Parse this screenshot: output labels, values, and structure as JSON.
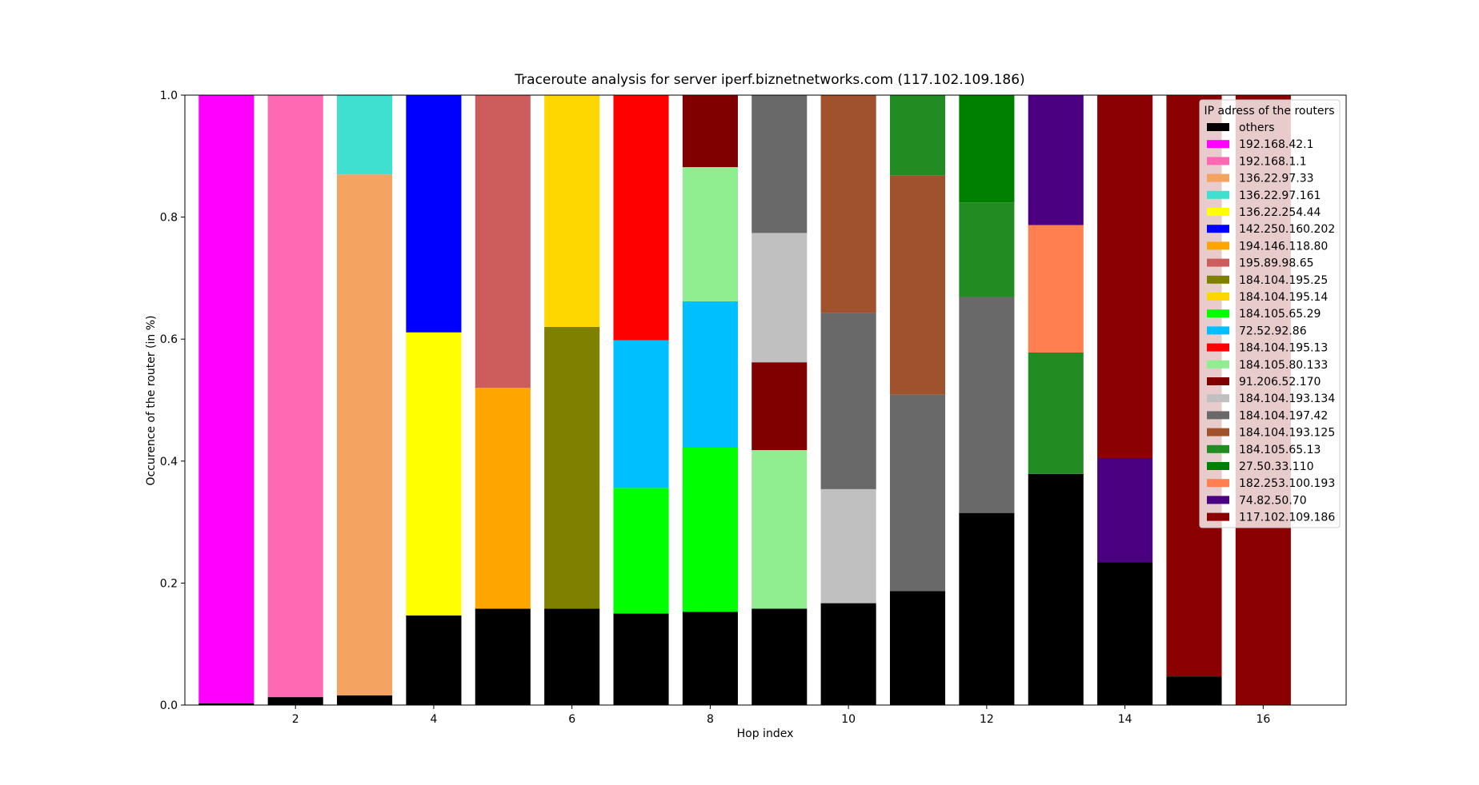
{
  "chart_data": {
    "type": "bar",
    "stacked": true,
    "title": "Traceroute analysis for server iperf.biznetnetworks.com (117.102.109.186)",
    "xlabel": "Hop index",
    "ylabel": "Occurence of the router (in %)",
    "xlim": [
      0.4,
      17.2
    ],
    "ylim": [
      0.0,
      1.0
    ],
    "xticks": [
      2,
      4,
      6,
      8,
      10,
      12,
      14,
      16
    ],
    "yticks": [
      0.0,
      0.2,
      0.4,
      0.6,
      0.8,
      1.0
    ],
    "ytick_labels": [
      "0.0",
      "0.2",
      "0.4",
      "0.6",
      "0.8",
      "1.0"
    ],
    "grid": false,
    "legend": {
      "title": "IP adress of the routers",
      "position": "upper right",
      "entries": [
        {
          "label": "others",
          "color": "#000000"
        },
        {
          "label": "192.168.42.1",
          "color": "#ff00ff"
        },
        {
          "label": "192.168.1.1",
          "color": "#ff69b4"
        },
        {
          "label": "136.22.97.33",
          "color": "#f4a460"
        },
        {
          "label": "136.22.97.161",
          "color": "#40e0d0"
        },
        {
          "label": "136.22.254.44",
          "color": "#ffff00"
        },
        {
          "label": "142.250.160.202",
          "color": "#0000ff"
        },
        {
          "label": "194.146.118.80",
          "color": "#ffa500"
        },
        {
          "label": "195.89.98.65",
          "color": "#cd5c5c"
        },
        {
          "label": "184.104.195.25",
          "color": "#808000"
        },
        {
          "label": "184.104.195.14",
          "color": "#ffd700"
        },
        {
          "label": "184.105.65.29",
          "color": "#00ff00"
        },
        {
          "label": "72.52.92.86",
          "color": "#00bfff"
        },
        {
          "label": "184.104.195.13",
          "color": "#ff0000"
        },
        {
          "label": "184.105.80.133",
          "color": "#90ee90"
        },
        {
          "label": "91.206.52.170",
          "color": "#800000"
        },
        {
          "label": "184.104.193.134",
          "color": "#c0c0c0"
        },
        {
          "label": "184.104.197.42",
          "color": "#696969"
        },
        {
          "label": "184.104.193.125",
          "color": "#a0522d"
        },
        {
          "label": "184.105.65.13",
          "color": "#228b22"
        },
        {
          "label": "27.50.33.110",
          "color": "#008000"
        },
        {
          "label": "182.253.100.193",
          "color": "#ff7f50"
        },
        {
          "label": "74.82.50.70",
          "color": "#4b0082"
        },
        {
          "label": "117.102.109.186",
          "color": "#8b0000"
        }
      ]
    },
    "bars": [
      {
        "x": 1,
        "segments": [
          {
            "router": "others",
            "value": 0.003
          },
          {
            "router": "192.168.42.1",
            "value": 0.997
          }
        ]
      },
      {
        "x": 2,
        "segments": [
          {
            "router": "others",
            "value": 0.013
          },
          {
            "router": "192.168.1.1",
            "value": 0.987
          }
        ]
      },
      {
        "x": 3,
        "segments": [
          {
            "router": "others",
            "value": 0.016
          },
          {
            "router": "136.22.97.33",
            "value": 0.854
          },
          {
            "router": "136.22.97.161",
            "value": 0.13
          }
        ]
      },
      {
        "x": 4,
        "segments": [
          {
            "router": "others",
            "value": 0.147
          },
          {
            "router": "136.22.254.44",
            "value": 0.464
          },
          {
            "router": "142.250.160.202",
            "value": 0.389
          }
        ]
      },
      {
        "x": 5,
        "segments": [
          {
            "router": "others",
            "value": 0.158
          },
          {
            "router": "194.146.118.80",
            "value": 0.362
          },
          {
            "router": "195.89.98.65",
            "value": 0.48
          }
        ]
      },
      {
        "x": 6,
        "segments": [
          {
            "router": "others",
            "value": 0.158
          },
          {
            "router": "184.104.195.25",
            "value": 0.462
          },
          {
            "router": "184.104.195.14",
            "value": 0.38
          }
        ]
      },
      {
        "x": 7,
        "segments": [
          {
            "router": "others",
            "value": 0.15
          },
          {
            "router": "184.105.65.29",
            "value": 0.206
          },
          {
            "router": "72.52.92.86",
            "value": 0.242
          },
          {
            "router": "184.104.195.13",
            "value": 0.402
          }
        ]
      },
      {
        "x": 8,
        "segments": [
          {
            "router": "others",
            "value": 0.153
          },
          {
            "router": "184.105.65.29",
            "value": 0.269
          },
          {
            "router": "72.52.92.86",
            "value": 0.24
          },
          {
            "router": "184.105.80.133",
            "value": 0.22
          },
          {
            "router": "91.206.52.170",
            "value": 0.118
          }
        ]
      },
      {
        "x": 9,
        "segments": [
          {
            "router": "others",
            "value": 0.158
          },
          {
            "router": "184.105.80.133",
            "value": 0.26
          },
          {
            "router": "91.206.52.170",
            "value": 0.144
          },
          {
            "router": "184.104.193.134",
            "value": 0.212
          },
          {
            "router": "184.104.197.42",
            "value": 0.226
          }
        ]
      },
      {
        "x": 10,
        "segments": [
          {
            "router": "others",
            "value": 0.167
          },
          {
            "router": "184.104.193.134",
            "value": 0.187
          },
          {
            "router": "184.104.197.42",
            "value": 0.289
          },
          {
            "router": "184.104.193.125",
            "value": 0.357
          }
        ]
      },
      {
        "x": 11,
        "segments": [
          {
            "router": "others",
            "value": 0.187
          },
          {
            "router": "184.104.197.42",
            "value": 0.322
          },
          {
            "router": "184.104.193.125",
            "value": 0.359
          },
          {
            "router": "184.105.65.13",
            "value": 0.132
          }
        ]
      },
      {
        "x": 12,
        "segments": [
          {
            "router": "others",
            "value": 0.315
          },
          {
            "router": "184.104.197.42",
            "value": 0.354
          },
          {
            "router": "184.105.65.13",
            "value": 0.155
          },
          {
            "router": "27.50.33.110",
            "value": 0.176
          }
        ]
      },
      {
        "x": 13,
        "segments": [
          {
            "router": "others",
            "value": 0.379
          },
          {
            "router": "184.105.65.13",
            "value": 0.199
          },
          {
            "router": "182.253.100.193",
            "value": 0.209
          },
          {
            "router": "74.82.50.70",
            "value": 0.213
          }
        ]
      },
      {
        "x": 14,
        "segments": [
          {
            "router": "others",
            "value": 0.234
          },
          {
            "router": "74.82.50.70",
            "value": 0.171
          },
          {
            "router": "117.102.109.186",
            "value": 0.595
          }
        ]
      },
      {
        "x": 15,
        "segments": [
          {
            "router": "others",
            "value": 0.047
          },
          {
            "router": "117.102.109.186",
            "value": 0.953
          }
        ]
      },
      {
        "x": 16,
        "segments": [
          {
            "router": "117.102.109.186",
            "value": 1.0
          }
        ]
      }
    ]
  }
}
